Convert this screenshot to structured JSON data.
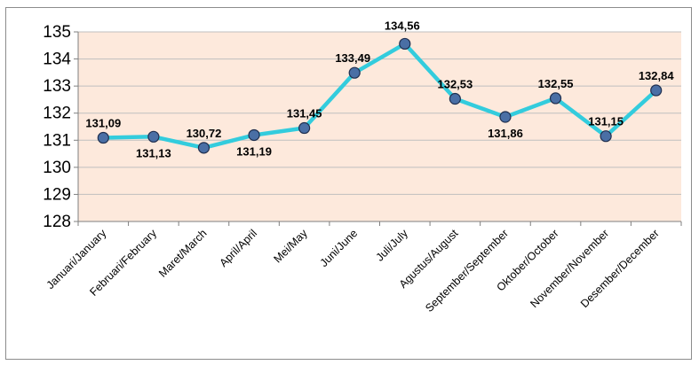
{
  "chart_data": {
    "type": "line",
    "title": "",
    "xlabel": "",
    "ylabel": "",
    "categories": [
      "Januari/January",
      "Februari/February",
      "Maret/March",
      "April/April",
      "Mei/May",
      "Juni/June",
      "Juli/July",
      "Agustus/August",
      "September/September",
      "Oktober/October",
      "November/November",
      "Desember/December"
    ],
    "series": [
      {
        "values": [
          131.09,
          131.13,
          130.72,
          131.19,
          131.45,
          133.49,
          134.56,
          132.53,
          131.86,
          132.55,
          131.15,
          132.84
        ],
        "labels": [
          "131,09",
          "131,13",
          "130,72",
          "131,19",
          "131,45",
          "133,49",
          "134,56",
          "132,53",
          "131,86",
          "132,55",
          "131,15",
          "132,84"
        ]
      }
    ],
    "ylim": [
      128,
      135
    ],
    "yticks": [
      "128",
      "129",
      "130",
      "131",
      "132",
      "133",
      "134",
      "135"
    ],
    "grid": true,
    "legend": "none",
    "colors": {
      "plot_background": "#fde9dc",
      "line": "#33ccdd",
      "marker_fill": "#4a6fa5",
      "marker_stroke": "#1f2f4f",
      "grid": "#bfbfbf"
    }
  }
}
